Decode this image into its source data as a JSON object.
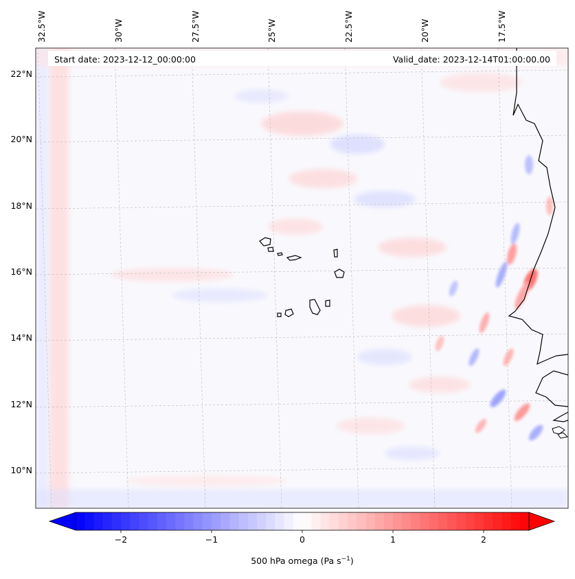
{
  "map": {
    "start_label": "Start date: 2023-12-12_00:00:00",
    "valid_label": "Valid_date: 2023-12-14T01:00:00.00",
    "lon_labels": [
      "32.5°W",
      "30°W",
      "27.5°W",
      "25°W",
      "22.5°W",
      "20°W",
      "17.5°W"
    ],
    "lat_labels": [
      "22°N",
      "20°N",
      "18°N",
      "16°N",
      "14°N",
      "12°N",
      "10°N"
    ]
  },
  "colorbar": {
    "label_main": "500 hPa omega (Pa s",
    "label_exp": "−1",
    "label_close": ")",
    "ticks": [
      "−2",
      "−1",
      "0",
      "1",
      "2"
    ],
    "colors": {
      "neg_max": "#0000ff",
      "zero": "#ffffff",
      "pos_max": "#ff0000"
    }
  },
  "chart_data": {
    "type": "heatmap",
    "title": "",
    "field": "500 hPa omega",
    "units": "Pa s^-1",
    "value_range": [
      -2.5,
      2.5
    ],
    "colorbar_ticks": [
      -2,
      -1,
      0,
      1,
      2
    ],
    "extend": "both",
    "colormap": "bwr",
    "lon_ticks": [
      -32.5,
      -30,
      -27.5,
      -25,
      -22.5,
      -20,
      -17.5
    ],
    "lat_ticks": [
      22,
      20,
      18,
      16,
      14,
      12,
      10
    ],
    "grid": true
  }
}
